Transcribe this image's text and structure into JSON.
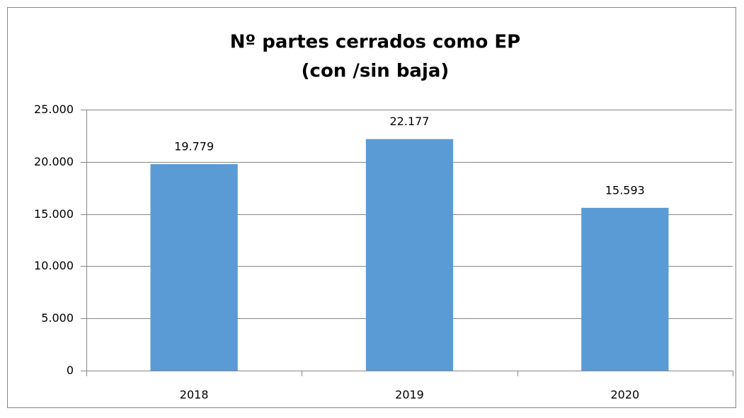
{
  "chart_data": {
    "type": "bar",
    "title": "Nº partes cerrados como EP",
    "subtitle": "(con /sin baja)",
    "categories": [
      "2018",
      "2019",
      "2020"
    ],
    "values": [
      19779,
      22177,
      15593
    ],
    "value_labels": [
      "19.779",
      "22.177",
      "15.593"
    ],
    "color": "#5b9bd5",
    "ylim": [
      0,
      25000
    ],
    "yticks": [
      0,
      {
        "value": 5000,
        "label": "5.000"
      },
      {
        "value": 10000,
        "label": "10.000"
      },
      {
        "value": 15000,
        "label": "15.000"
      },
      {
        "value": 20000,
        "label": "20.000"
      },
      {
        "value": 25000,
        "label": "25.000"
      }
    ],
    "grid": true
  }
}
